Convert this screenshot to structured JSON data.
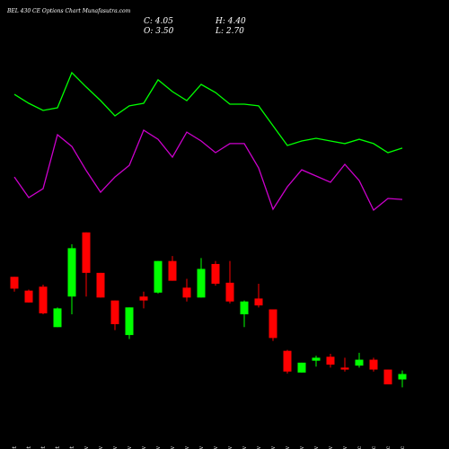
{
  "header": {
    "title": "BEL 430 CE Options Chart Munafasutra.com",
    "c": "C: 4.05",
    "h": "H: 4.40",
    "o": "O: 3.50",
    "l": "L: 2.70"
  },
  "chart_data": [
    {
      "type": "line",
      "ylim": [
        0,
        100
      ],
      "series": [
        {
          "color": "#00ff00",
          "values": [
            69.0,
            64.3,
            60.5,
            61.9,
            80.5,
            72.9,
            65.7,
            57.6,
            62.9,
            64.3,
            76.7,
            70.5,
            65.7,
            74.3,
            70.0,
            63.8,
            63.8,
            62.9,
            52.4,
            41.9,
            44.3,
            45.7,
            44.3,
            42.9,
            45.2,
            42.9,
            38.1,
            40.5
          ]
        },
        {
          "color": "#cc00cc",
          "values": [
            25.2,
            14.3,
            19.0,
            47.6,
            41.4,
            28.6,
            17.1,
            25.2,
            31.4,
            50.0,
            45.2,
            35.7,
            49.0,
            44.3,
            38.1,
            42.9,
            42.9,
            30.0,
            8.1,
            20.0,
            29.0,
            25.7,
            22.4,
            31.9,
            23.3,
            7.6,
            13.8,
            13.3
          ]
        }
      ]
    },
    {
      "type": "candlestick",
      "ylim": [
        0,
        19.2
      ],
      "up_color": "#00ff00",
      "down_color": "#ff0000",
      "categories": [
        "27 Oct",
        "28 Oct",
        "29 Oct",
        "30 Oct",
        "31 Oct",
        "03 Nov",
        "04 Nov",
        "06 Nov",
        "07 Nov",
        "10 Nov",
        "11 Nov",
        "12 Nov",
        "13 Nov",
        "14 Nov",
        "17 Nov",
        "18 Nov",
        "19 Nov",
        "20 Nov",
        "21 Nov",
        "24 Nov",
        "25 Nov",
        "26 Nov",
        "27 Nov",
        "28 Nov",
        "01 Dec",
        "02 Dec",
        "03 Dec",
        "04 Dec"
      ],
      "open": [
        13.9,
        12.5,
        12.9,
        8.8,
        11.9,
        18.4,
        14.3,
        11.5,
        8.0,
        11.9,
        12.3,
        15.5,
        12.8,
        11.8,
        15.2,
        13.3,
        10.1,
        11.7,
        10.6,
        6.4,
        4.2,
        5.4,
        5.8,
        4.7,
        4.9,
        5.5,
        4.5,
        3.5
      ],
      "high": [
        13.9,
        12.6,
        13.1,
        10.8,
        17.2,
        18.4,
        14.3,
        11.5,
        10.8,
        12.4,
        15.5,
        16.0,
        13.7,
        15.8,
        15.5,
        15.5,
        11.5,
        13.2,
        10.6,
        6.5,
        5.2,
        5.9,
        6.1,
        5.7,
        6.2,
        5.7,
        4.5,
        4.4
      ],
      "low": [
        12.4,
        11.3,
        10.1,
        8.8,
        10.1,
        11.9,
        11.8,
        8.5,
        7.6,
        10.7,
        12.2,
        13.5,
        11.4,
        11.8,
        13.0,
        11.2,
        8.8,
        10.8,
        7.4,
        4.1,
        4.2,
        4.8,
        4.7,
        4.3,
        4.7,
        4.3,
        3.0,
        2.7
      ],
      "close": [
        12.7,
        11.3,
        10.2,
        10.7,
        16.8,
        14.3,
        11.8,
        9.1,
        10.8,
        11.5,
        15.5,
        13.5,
        11.8,
        14.7,
        13.2,
        11.4,
        11.4,
        11.0,
        7.7,
        4.3,
        5.2,
        5.7,
        5.0,
        4.5,
        5.5,
        4.5,
        3.0,
        4.05
      ]
    }
  ]
}
